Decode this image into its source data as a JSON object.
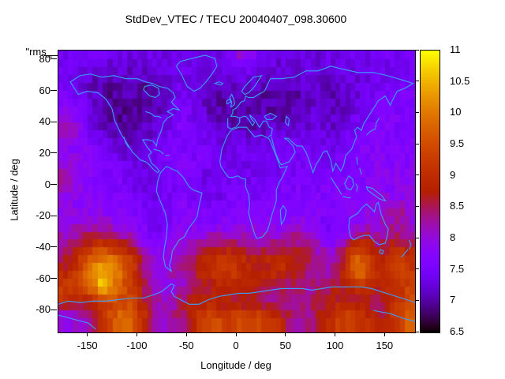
{
  "title": "StdDev_VTEC / TECU 20040407_098.30600",
  "key": {
    "label": "\"rms_"
  },
  "axes": {
    "x": {
      "label": "Longitude / deg",
      "ticks": [
        -150,
        -100,
        -50,
        0,
        50,
        100,
        150
      ],
      "range": [
        -180,
        180
      ]
    },
    "y": {
      "label": "Latitude / deg",
      "ticks": [
        80,
        60,
        40,
        20,
        0,
        -20,
        -40,
        -60,
        -80
      ],
      "range": [
        -94,
        86
      ]
    }
  },
  "colorbar": {
    "min": 6.5,
    "max": 11,
    "ticks": [
      6.5,
      7,
      7.5,
      8,
      8.5,
      9,
      9.5,
      10,
      10.5,
      11
    ],
    "palette": "gnuplot-pm3d-black-purple-red-yellow"
  },
  "colors": {
    "coastline": "#399fff",
    "frame": "#000000",
    "background": "#ffffff",
    "text": "#000000"
  },
  "chart_data": {
    "type": "heatmap",
    "title": "StdDev_VTEC / TECU 20040407_098.30600",
    "xlabel": "Longitude / deg",
    "ylabel": "Latitude / deg",
    "x_range": [
      -180,
      180
    ],
    "y_range": [
      -90,
      90
    ],
    "value_range": [
      6.5,
      11
    ],
    "value_units": "TECU",
    "grid_lon_step_deg": 10,
    "grid_lat_step_deg": 10,
    "grid_rows_lat_desc": "rows ordered north (+85) to south (-85), 36 columns from lon -175 to +175",
    "grid": [
      [
        7.4,
        7.4,
        7.3,
        7.4,
        7.5,
        7.4,
        7.4,
        7.3,
        7.4,
        7.4,
        7.4,
        7.3,
        7.4,
        7.4,
        7.5,
        7.4,
        7.4,
        7.6,
        8.3,
        7.9,
        7.5,
        7.4,
        7.3,
        7.4,
        7.4,
        7.4,
        7.3,
        7.4,
        7.4,
        7.4,
        7.3,
        7.4,
        7.4,
        7.5,
        7.4,
        7.4
      ],
      [
        7.5,
        7.4,
        7.4,
        7.3,
        7.3,
        7.2,
        7.2,
        7.3,
        7.3,
        7.2,
        7.2,
        7.3,
        7.4,
        7.3,
        7.3,
        7.2,
        7.3,
        7.4,
        7.6,
        7.4,
        7.3,
        7.3,
        7.2,
        7.2,
        7.3,
        7.3,
        7.2,
        7.3,
        7.3,
        7.4,
        7.3,
        7.3,
        7.4,
        7.4,
        7.5,
        7.5
      ],
      [
        7.5,
        7.4,
        7.3,
        7.1,
        7.0,
        7.0,
        7.1,
        7.0,
        7.0,
        7.1,
        7.2,
        7.3,
        7.4,
        7.3,
        7.2,
        7.1,
        7.1,
        7.2,
        7.3,
        7.2,
        7.1,
        7.1,
        7.0,
        7.1,
        7.1,
        7.2,
        7.1,
        7.1,
        7.2,
        7.2,
        7.3,
        7.3,
        7.4,
        7.4,
        7.5,
        7.5
      ],
      [
        7.6,
        7.5,
        7.4,
        7.2,
        7.0,
        6.9,
        7.0,
        7.0,
        6.9,
        7.0,
        7.1,
        7.3,
        7.5,
        7.4,
        7.2,
        7.1,
        7.0,
        7.1,
        7.2,
        7.1,
        7.0,
        7.0,
        7.1,
        7.0,
        7.1,
        7.1,
        7.2,
        7.1,
        7.1,
        7.2,
        7.3,
        7.4,
        7.5,
        7.6,
        7.6,
        7.6
      ],
      [
        8.0,
        7.8,
        7.5,
        7.3,
        7.1,
        7.0,
        6.9,
        7.0,
        7.0,
        7.1,
        7.2,
        7.4,
        7.6,
        7.5,
        7.3,
        7.1,
        7.0,
        7.0,
        7.1,
        7.0,
        7.0,
        7.1,
        7.0,
        7.1,
        7.1,
        7.2,
        7.2,
        7.1,
        7.2,
        7.3,
        7.4,
        7.5,
        7.6,
        7.7,
        7.6,
        7.5
      ],
      [
        8.4,
        8.1,
        7.7,
        7.4,
        7.2,
        7.1,
        7.0,
        7.0,
        7.1,
        7.2,
        7.3,
        7.5,
        7.6,
        7.5,
        7.4,
        7.2,
        7.1,
        7.1,
        7.2,
        7.1,
        7.1,
        7.2,
        7.2,
        7.3,
        7.3,
        7.3,
        7.2,
        7.2,
        7.3,
        7.4,
        7.5,
        7.6,
        7.7,
        7.7,
        7.6,
        7.5
      ],
      [
        7.9,
        7.8,
        7.7,
        7.6,
        7.5,
        7.4,
        7.2,
        7.1,
        7.2,
        7.3,
        7.4,
        7.6,
        7.6,
        7.5,
        7.5,
        7.4,
        7.3,
        7.3,
        7.4,
        7.3,
        7.3,
        7.4,
        7.4,
        7.4,
        7.5,
        7.4,
        7.4,
        7.3,
        7.4,
        7.5,
        7.6,
        7.7,
        7.7,
        7.6,
        7.6,
        7.7
      ],
      [
        7.8,
        7.9,
        7.8,
        7.7,
        7.6,
        7.5,
        7.4,
        7.3,
        7.3,
        7.4,
        7.5,
        7.6,
        7.7,
        7.6,
        7.5,
        7.5,
        7.4,
        7.3,
        7.4,
        7.4,
        7.3,
        7.4,
        7.4,
        7.5,
        7.5,
        7.5,
        7.5,
        7.4,
        7.5,
        7.6,
        7.6,
        7.7,
        7.8,
        7.7,
        7.7,
        7.7
      ],
      [
        8.4,
        8.1,
        7.9,
        7.7,
        7.6,
        7.6,
        7.5,
        7.4,
        7.3,
        7.3,
        7.4,
        7.5,
        7.6,
        7.5,
        7.4,
        7.4,
        7.4,
        7.4,
        7.5,
        7.4,
        7.4,
        7.5,
        7.5,
        7.5,
        7.6,
        7.5,
        7.5,
        7.6,
        7.6,
        7.6,
        7.7,
        7.7,
        7.8,
        7.8,
        7.8,
        7.8
      ],
      [
        8.0,
        7.9,
        7.8,
        7.7,
        7.7,
        7.6,
        7.6,
        7.5,
        7.4,
        7.3,
        7.4,
        7.5,
        7.6,
        7.5,
        7.5,
        7.4,
        7.4,
        7.5,
        7.6,
        7.5,
        7.5,
        7.5,
        7.6,
        7.6,
        7.6,
        7.6,
        7.6,
        7.6,
        7.7,
        7.7,
        7.7,
        7.8,
        7.8,
        7.8,
        7.8,
        7.9
      ],
      [
        7.9,
        7.8,
        7.8,
        7.8,
        7.8,
        7.7,
        7.7,
        7.6,
        7.5,
        7.4,
        7.4,
        7.5,
        7.7,
        7.6,
        7.6,
        7.5,
        7.5,
        7.6,
        7.7,
        7.7,
        7.6,
        7.6,
        7.7,
        7.7,
        7.7,
        7.7,
        7.7,
        7.6,
        7.7,
        7.8,
        7.8,
        7.9,
        8.0,
        8.2,
        8.3,
        8.1
      ],
      [
        8.0,
        8.0,
        8.1,
        8.1,
        8.0,
        7.9,
        7.9,
        7.8,
        7.6,
        7.4,
        7.4,
        7.6,
        7.8,
        7.8,
        7.7,
        7.7,
        7.7,
        7.8,
        7.9,
        7.9,
        7.8,
        7.8,
        7.8,
        7.9,
        7.9,
        7.8,
        7.6,
        7.4,
        7.5,
        7.7,
        7.9,
        8.0,
        8.1,
        8.3,
        8.2,
        8.0
      ],
      [
        8.2,
        8.3,
        8.5,
        8.7,
        8.8,
        8.6,
        8.4,
        8.2,
        7.9,
        7.7,
        7.6,
        7.7,
        7.9,
        8.0,
        8.1,
        8.2,
        8.3,
        8.3,
        8.2,
        8.1,
        8.0,
        8.1,
        8.2,
        8.3,
        8.4,
        8.2,
        7.9,
        7.7,
        7.8,
        8.3,
        8.7,
        8.5,
        8.3,
        8.5,
        8.6,
        8.4
      ],
      [
        8.5,
        8.7,
        9.2,
        9.6,
        9.8,
        9.7,
        9.4,
        9.0,
        8.4,
        8.0,
        7.9,
        8.0,
        8.2,
        8.4,
        8.7,
        8.9,
        9.0,
        9.0,
        8.9,
        8.8,
        8.7,
        8.8,
        8.9,
        8.8,
        8.6,
        8.4,
        8.2,
        8.1,
        8.5,
        9.3,
        9.7,
        9.2,
        8.8,
        9.0,
        9.2,
        8.9
      ],
      [
        8.8,
        9.0,
        9.6,
        10.2,
        10.5,
        10.2,
        9.8,
        9.3,
        8.6,
        8.1,
        8.0,
        8.1,
        8.3,
        8.6,
        8.9,
        9.1,
        9.3,
        9.2,
        9.0,
        8.9,
        8.8,
        8.9,
        9.0,
        8.8,
        8.6,
        8.4,
        8.3,
        8.2,
        8.6,
        9.5,
        9.9,
        9.3,
        8.9,
        9.2,
        9.4,
        9.1
      ],
      [
        9.4,
        9.3,
        9.5,
        10.0,
        10.8,
        10.1,
        9.6,
        9.2,
        8.6,
        8.2,
        8.0,
        8.0,
        8.1,
        8.3,
        8.5,
        8.7,
        8.9,
        9.0,
        8.9,
        8.8,
        8.7,
        8.6,
        8.5,
        8.4,
        8.3,
        8.3,
        8.4,
        8.5,
        8.7,
        9.0,
        9.2,
        8.9,
        8.7,
        8.9,
        9.1,
        9.3
      ],
      [
        9.0,
        8.8,
        8.7,
        9.0,
        9.4,
        9.3,
        9.5,
        9.4,
        8.8,
        8.4,
        8.2,
        8.3,
        8.5,
        8.7,
        8.8,
        8.8,
        8.7,
        8.6,
        8.5,
        8.5,
        8.4,
        8.4,
        8.3,
        8.3,
        8.4,
        8.5,
        8.7,
        8.8,
        8.8,
        8.7,
        8.6,
        8.5,
        8.6,
        8.8,
        9.2,
        9.5
      ],
      [
        7.9,
        8.0,
        8.2,
        8.5,
        9.0,
        9.6,
        9.9,
        9.7,
        9.2,
        8.4,
        8.1,
        8.2,
        8.4,
        8.8,
        9.3,
        9.5,
        9.4,
        9.3,
        9.4,
        9.5,
        9.4,
        9.2,
        8.9,
        8.4,
        8.2,
        8.3,
        8.6,
        9.0,
        9.3,
        9.4,
        9.2,
        8.9,
        8.6,
        8.9,
        9.4,
        9.7
      ]
    ]
  }
}
